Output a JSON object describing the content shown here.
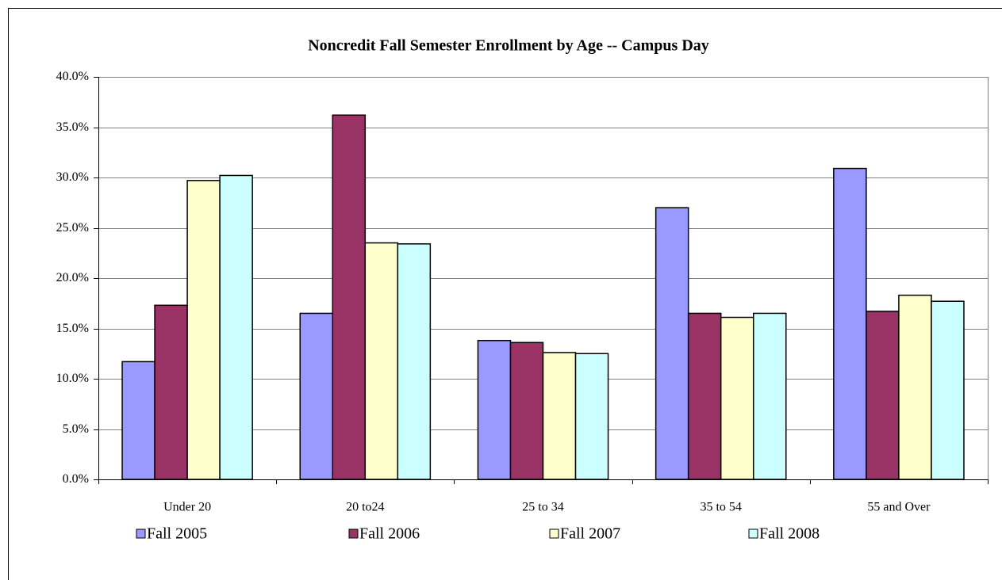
{
  "chart_data": {
    "type": "bar",
    "title": "Noncredit Fall Semester Enrollment by Age -- Campus Day",
    "categories": [
      "Under 20",
      "20 to24",
      "25 to 34",
      "35 to 54",
      "55 and Over"
    ],
    "series": [
      {
        "name": "Fall 2005",
        "color": "#9999ff",
        "values": [
          11.7,
          16.5,
          13.8,
          27.0,
          30.9
        ]
      },
      {
        "name": "Fall 2006",
        "color": "#993366",
        "values": [
          17.3,
          36.2,
          13.6,
          16.5,
          16.7
        ]
      },
      {
        "name": "Fall 2007",
        "color": "#ffffcc",
        "values": [
          29.7,
          23.5,
          12.6,
          16.1,
          18.3
        ]
      },
      {
        "name": "Fall 2008",
        "color": "#ccffff",
        "values": [
          30.2,
          23.4,
          12.5,
          16.5,
          17.7
        ]
      }
    ],
    "ylim": [
      0,
      40
    ],
    "yticks": [
      {
        "value": 0,
        "label": "0.0%"
      },
      {
        "value": 5,
        "label": "5.0%"
      },
      {
        "value": 10,
        "label": "10.0%"
      },
      {
        "value": 15,
        "label": "15.0%"
      },
      {
        "value": 20,
        "label": "20.0%"
      },
      {
        "value": 25,
        "label": "25.0%"
      },
      {
        "value": 30,
        "label": "30.0%"
      },
      {
        "value": 35,
        "label": "35.0%"
      },
      {
        "value": 40,
        "label": "40.0%"
      }
    ],
    "grid": true,
    "legend": "bottom"
  }
}
